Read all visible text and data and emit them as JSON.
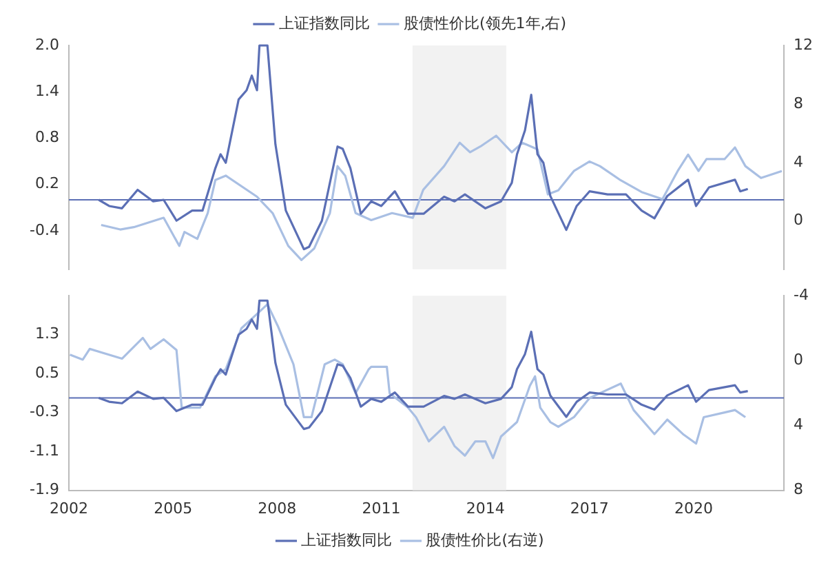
{
  "chart_data": [
    {
      "type": "line",
      "xlim": [
        2002,
        2022.6
      ],
      "xticks": [
        2002,
        2005,
        2008,
        2011,
        2014,
        2017,
        2020
      ],
      "ylim": [
        -0.9,
        2.0
      ],
      "yticks": [
        -0.4,
        0.2,
        0.8,
        1.4,
        {
          "value": 2,
          "label": "2.0"
        }
      ],
      "y2lim": [
        -3.3,
        12
      ],
      "y2ticks": [
        0,
        4,
        8,
        12
      ],
      "tick_labels": "y",
      "legend": "top",
      "grid": false,
      "marker": "none",
      "line_style": "solid",
      "bands": [
        {
          "axis": "x",
          "from": 2011.9,
          "to": 2014.6,
          "color": "#f2f2f2"
        }
      ],
      "ref_lines": [
        {
          "axis": "y",
          "value": 0,
          "color": "#5b6fb5"
        }
      ],
      "series": [
        {
          "name": "上证指数同比",
          "color": "#5b6fb5",
          "x": [
            2002.86,
            2003.16,
            2003.53,
            2003.98,
            2004.43,
            2004.73,
            2005.1,
            2005.55,
            2005.85,
            2006.22,
            2006.37,
            2006.52,
            2006.89,
            2007.12,
            2007.27,
            2007.42,
            2007.49,
            2007.72,
            2007.95,
            2008.25,
            2008.77,
            2008.92,
            2009.29,
            2009.74,
            2009.89,
            2010.11,
            2010.41,
            2010.71,
            2011.0,
            2011.39,
            2011.77,
            2012.22,
            2012.81,
            2013.11,
            2013.41,
            2014.0,
            2014.45,
            2014.76,
            2014.91,
            2015.14,
            2015.32,
            2015.5,
            2015.67,
            2015.87,
            2016.33,
            2016.63,
            2017.0,
            2017.52,
            2018.05,
            2018.5,
            2018.87,
            2019.24,
            2019.84,
            2020.07,
            2020.44,
            2021.19,
            2021.34,
            2021.56
          ],
          "values": [
            0,
            -0.08,
            -0.11,
            0.13,
            -0.02,
            0,
            -0.27,
            -0.14,
            -0.14,
            0.41,
            0.59,
            0.48,
            1.3,
            1.42,
            1.61,
            1.42,
            2.0,
            2.0,
            0.72,
            -0.14,
            -0.64,
            -0.61,
            -0.27,
            0.69,
            0.66,
            0.41,
            -0.18,
            -0.02,
            -0.08,
            0.11,
            -0.18,
            -0.18,
            0.04,
            -0.02,
            0.07,
            -0.11,
            -0.02,
            0.22,
            0.59,
            0.9,
            1.36,
            0.59,
            0.48,
            0.05,
            -0.39,
            -0.08,
            0.11,
            0.07,
            0.07,
            -0.14,
            -0.24,
            0.05,
            0.26,
            -0.08,
            0.16,
            0.26,
            0.11,
            0.14
          ]
        },
        {
          "name": "股债性价比(领先1年,右)",
          "color": "#a9bfe3",
          "axis": "y2",
          "x": [
            2002.93,
            2003.48,
            2003.87,
            2004.73,
            2005.18,
            2005.33,
            2005.7,
            2006.0,
            2006.22,
            2006.52,
            2007.42,
            2007.87,
            2008.32,
            2008.7,
            2009.07,
            2009.52,
            2009.74,
            2009.96,
            2010.26,
            2010.71,
            2011.31,
            2011.91,
            2012.21,
            2012.81,
            2013.26,
            2013.56,
            2013.86,
            2014.31,
            2014.76,
            2015.06,
            2015.5,
            2015.8,
            2016.1,
            2016.55,
            2017.0,
            2017.3,
            2017.9,
            2018.5,
            2019.1,
            2019.54,
            2019.84,
            2020.14,
            2020.37,
            2020.89,
            2021.19,
            2021.49,
            2021.94,
            2022.54
          ],
          "values": [
            -0.27,
            -0.58,
            -0.42,
            0.22,
            -1.7,
            -0.75,
            -1.22,
            0.54,
            2.8,
            3.1,
            1.66,
            0.54,
            -1.7,
            -2.67,
            -1.87,
            0.54,
            3.75,
            3.1,
            0.54,
            0.06,
            0.54,
            0.22,
            2.14,
            3.75,
            5.35,
            4.7,
            5.1,
            5.83,
            4.7,
            5.35,
            4.9,
            1.82,
            2.1,
            3.42,
            4.07,
            3.75,
            2.78,
            1.98,
            1.5,
            3.42,
            4.54,
            3.42,
            4.23,
            4.23,
            5.03,
            3.75,
            2.94,
            3.42
          ]
        }
      ]
    },
    {
      "type": "line",
      "xlim": [
        2002,
        2022.6
      ],
      "xticks": [
        2002,
        2005,
        2008,
        2011,
        2014,
        2017,
        2020
      ],
      "ylim": [
        -1.9,
        2.1
      ],
      "yticks": [
        -1.9,
        -1.1,
        -0.3,
        0.5,
        1.3
      ],
      "y2lim": [
        8,
        -4
      ],
      "y2ticks": [
        -4,
        0,
        4,
        8
      ],
      "legend": "bottom",
      "grid": false,
      "marker": "none",
      "line_style": "solid",
      "bands": [
        {
          "axis": "x",
          "from": 2011.9,
          "to": 2014.6,
          "color": "#f2f2f2"
        }
      ],
      "ref_lines": [
        {
          "axis": "y",
          "value": 0,
          "color": "#5b6fb5"
        }
      ],
      "series": [
        {
          "name": "上证指数同比",
          "color": "#5b6fb5",
          "x": [
            2002.86,
            2003.16,
            2003.53,
            2003.98,
            2004.43,
            2004.73,
            2005.1,
            2005.55,
            2005.85,
            2006.22,
            2006.37,
            2006.52,
            2006.89,
            2007.12,
            2007.27,
            2007.42,
            2007.49,
            2007.72,
            2007.95,
            2008.25,
            2008.77,
            2008.92,
            2009.29,
            2009.74,
            2009.89,
            2010.11,
            2010.41,
            2010.71,
            2011.0,
            2011.39,
            2011.77,
            2012.22,
            2012.81,
            2013.11,
            2013.41,
            2014.0,
            2014.45,
            2014.76,
            2014.91,
            2015.14,
            2015.32,
            2015.5,
            2015.67,
            2015.87,
            2016.33,
            2016.63,
            2017.0,
            2017.52,
            2018.05,
            2018.5,
            2018.87,
            2019.24,
            2019.84,
            2020.07,
            2020.44,
            2021.19,
            2021.34,
            2021.56
          ],
          "values": [
            0,
            -0.08,
            -0.11,
            0.13,
            -0.02,
            0,
            -0.27,
            -0.14,
            -0.14,
            0.41,
            0.59,
            0.48,
            1.3,
            1.42,
            1.61,
            1.42,
            2.0,
            2.0,
            0.72,
            -0.14,
            -0.64,
            -0.61,
            -0.27,
            0.69,
            0.66,
            0.41,
            -0.18,
            -0.02,
            -0.08,
            0.11,
            -0.18,
            -0.18,
            0.04,
            -0.02,
            0.07,
            -0.11,
            -0.02,
            0.22,
            0.59,
            0.9,
            1.36,
            0.59,
            0.48,
            0.05,
            -0.39,
            -0.08,
            0.11,
            0.07,
            0.07,
            -0.14,
            -0.24,
            0.05,
            0.26,
            -0.08,
            0.16,
            0.26,
            0.11,
            0.14
          ]
        },
        {
          "name": "股债性价比(右逆)",
          "color": "#a9bfe3",
          "axis": "y2",
          "x": [
            2002.03,
            2002.4,
            2002.6,
            2003.53,
            2004.13,
            2004.35,
            2004.73,
            2005.1,
            2005.25,
            2005.78,
            2006.22,
            2006.52,
            2006.97,
            2007.42,
            2007.72,
            2008.02,
            2008.47,
            2008.77,
            2008.99,
            2009.37,
            2009.66,
            2009.89,
            2010.26,
            2010.64,
            2010.71,
            2011.16,
            2011.24,
            2011.77,
            2012.0,
            2012.37,
            2012.81,
            2013.11,
            2013.41,
            2013.71,
            2014.0,
            2014.22,
            2014.45,
            2014.91,
            2015.28,
            2015.43,
            2015.58,
            2015.87,
            2016.1,
            2016.55,
            2017.0,
            2017.3,
            2017.9,
            2018.27,
            2018.87,
            2019.24,
            2019.69,
            2020.07,
            2020.29,
            2020.89,
            2021.19,
            2021.49
          ],
          "values": [
            -0.36,
            -0.06,
            -0.72,
            -0.12,
            -1.4,
            -0.72,
            -1.31,
            -0.65,
            2.9,
            2.9,
            0.97,
            0.53,
            -1.99,
            -2.88,
            -3.47,
            -2.13,
            0.23,
            3.49,
            3.49,
            0.23,
            -0.06,
            0.23,
            2.01,
            0.53,
            0.38,
            0.38,
            2.01,
            2.9,
            3.49,
            4.98,
            4.08,
            5.27,
            5.86,
            4.98,
            4.98,
            6.01,
            4.68,
            3.79,
            1.56,
            0.97,
            2.9,
            3.79,
            4.08,
            3.49,
            2.31,
            2.01,
            1.42,
            3.05,
            4.53,
            3.64,
            4.53,
            5.12,
            3.49,
            3.2,
            3.05,
            3.49
          ]
        }
      ]
    }
  ]
}
